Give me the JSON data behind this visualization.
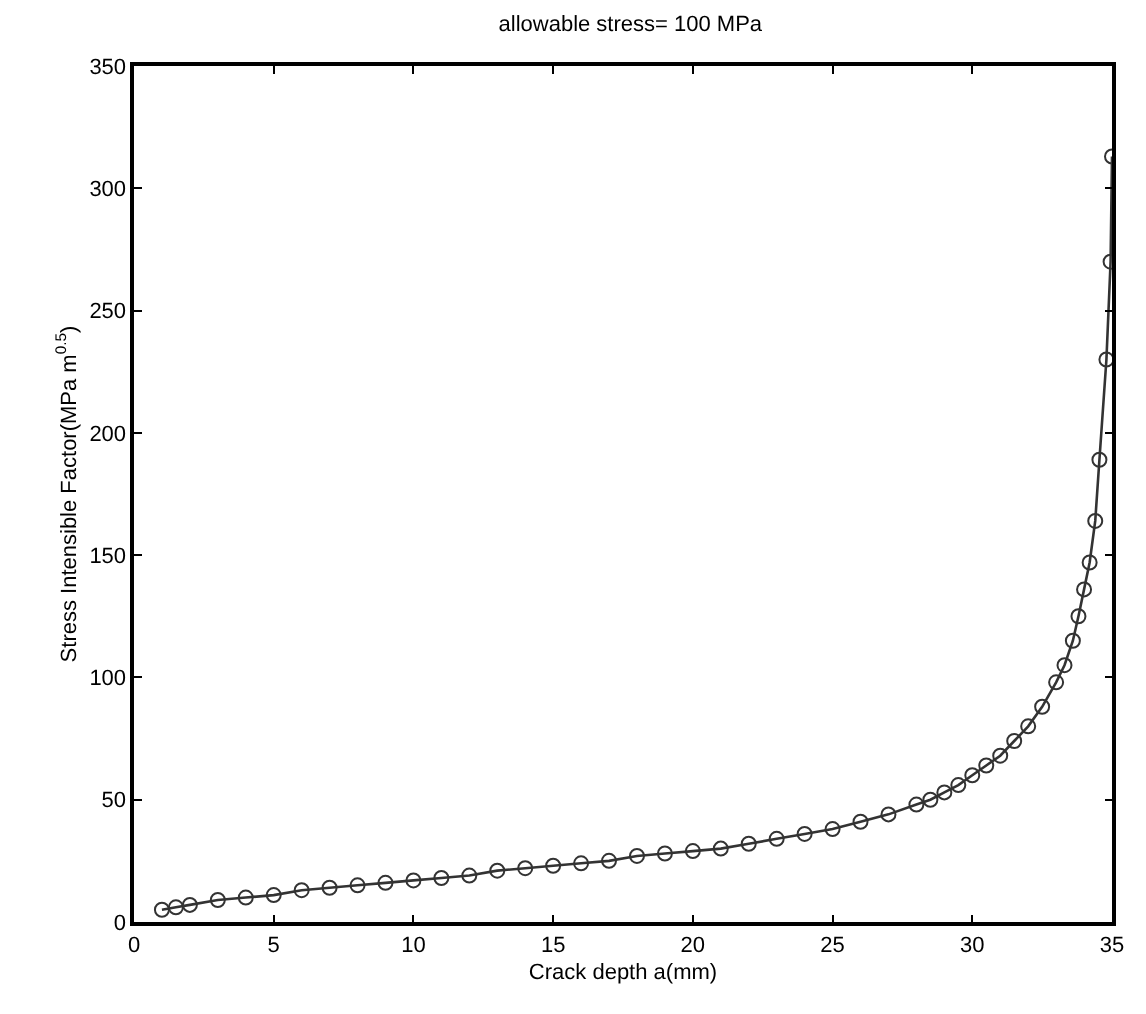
{
  "chart_data": {
    "type": "line",
    "title": "allowable stress= 100 MPa",
    "xlabel": "Crack depth a(mm)",
    "ylabel": "Stress Intensible Factor(MPa m$^{0.5}$)",
    "x": [
      1,
      1.5,
      2,
      3,
      4,
      5,
      6,
      7,
      8,
      9,
      10,
      11,
      12,
      13,
      14,
      15,
      16,
      17,
      18,
      19,
      20,
      21,
      22,
      23,
      24,
      25,
      26,
      27,
      28,
      28.5,
      29,
      29.5,
      30,
      30.5,
      31,
      31.5,
      32,
      32.5,
      33,
      33.3,
      33.6,
      33.8,
      34,
      34.2,
      34.4,
      34.55,
      34.8,
      34.95,
      35
    ],
    "series": [
      {
        "color": "#333333",
        "values": [
          5,
          6,
          7,
          9,
          10,
          11,
          13,
          14,
          15,
          16,
          17,
          18,
          19,
          21,
          22,
          23,
          24,
          25,
          27,
          28,
          29,
          30,
          32,
          34,
          36,
          38,
          41,
          44,
          48,
          50,
          53,
          56,
          60,
          64,
          68,
          74,
          80,
          88,
          98,
          105,
          115,
          125,
          136,
          147,
          164,
          189,
          230,
          270,
          313
        ]
      }
    ],
    "xlim": [
      0,
      35
    ],
    "xticks": [
      0,
      5,
      10,
      15,
      20,
      25,
      30,
      35
    ],
    "ylim": [
      0,
      350
    ],
    "yticks": [
      0,
      50,
      100,
      150,
      200,
      250,
      300,
      350
    ],
    "marker": "circle",
    "line_style": "solid"
  }
}
